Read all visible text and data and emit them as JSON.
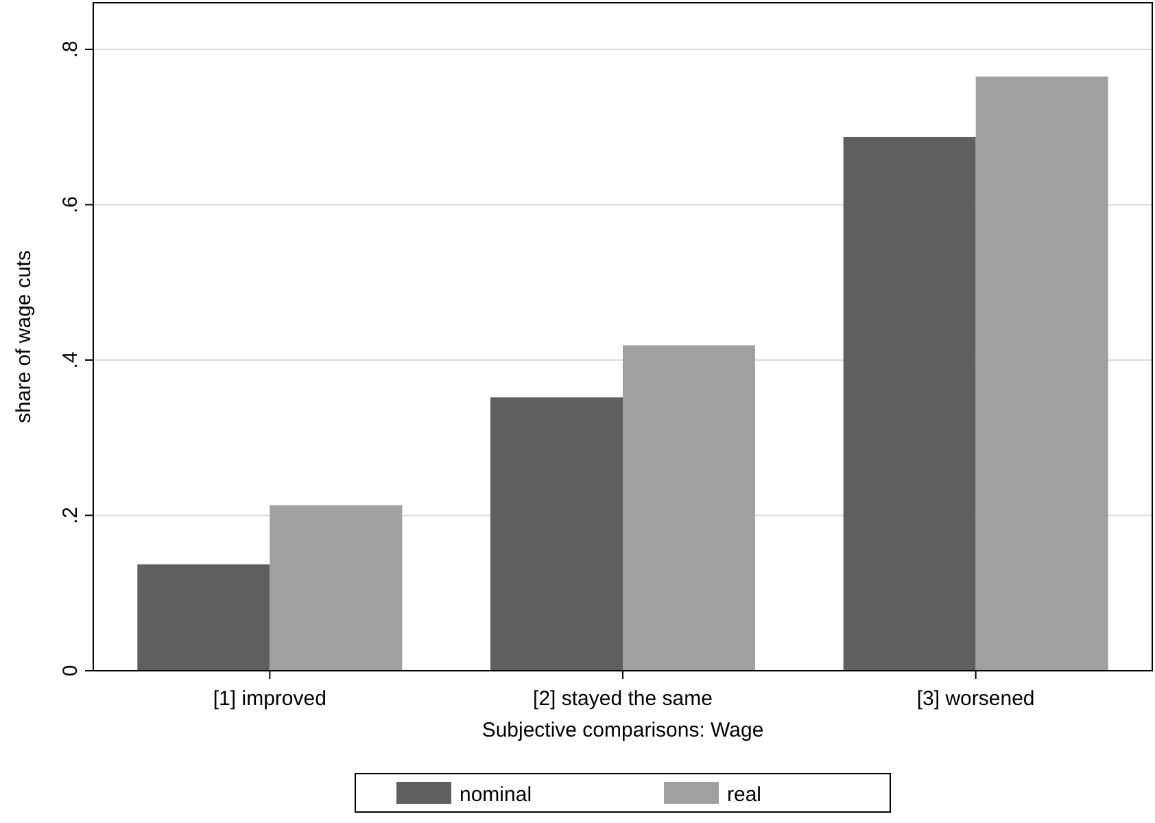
{
  "chart_data": {
    "type": "bar",
    "xlabel": "Subjective comparisons: Wage",
    "ylabel": "share of wage cuts",
    "categories": [
      "[1] improved",
      "[2] stayed the same",
      "[3] worsened"
    ],
    "series": [
      {
        "name": "nominal",
        "color": "#5f5f5f",
        "values": [
          0.137,
          0.352,
          0.687
        ]
      },
      {
        "name": "real",
        "color": "#a0a0a0",
        "values": [
          0.213,
          0.419,
          0.765
        ]
      }
    ],
    "ylim": [
      0,
      0.86
    ],
    "yticks": [
      0,
      {
        "value": 0.2,
        "label": ".2"
      },
      {
        "value": 0.4,
        "label": ".4"
      },
      {
        "value": 0.6,
        "label": ".6"
      },
      {
        "value": 0.8,
        "label": ".8"
      }
    ],
    "grid": "y",
    "legend": "bottom"
  }
}
